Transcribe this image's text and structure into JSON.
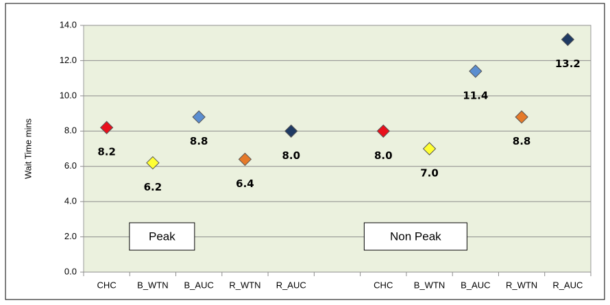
{
  "chart_data": {
    "type": "scatter",
    "y_label": "Wait Time  mins",
    "categories": [
      "CHC",
      "B_WTN",
      "B_AUC",
      "R_WTN",
      "R_AUC",
      null,
      "CHC",
      "B_WTN",
      "B_AUC",
      "R_WTN",
      "R_AUC"
    ],
    "values": [
      8.2,
      6.2,
      8.8,
      6.4,
      8.0,
      null,
      8.0,
      7.0,
      11.4,
      8.8,
      13.2
    ],
    "value_labels": [
      "8.2",
      "6.2",
      "8.8",
      "6.4",
      "8.0",
      null,
      "8.0",
      "7.0",
      "11.4",
      "8.8",
      "13.2"
    ],
    "colors": [
      "#e8101c",
      "#ffff33",
      "#5b8ed0",
      "#e57a2a",
      "#1f3a63",
      null,
      "#e8101c",
      "#ffff33",
      "#5b8ed0",
      "#e57a2a",
      "#1f3a63"
    ],
    "annotations": [
      "Peak",
      "Non Peak"
    ],
    "ylim": [
      0,
      14
    ],
    "yticks": [
      {
        "value": 0,
        "label": "0.0"
      },
      {
        "value": 2,
        "label": "2.0"
      },
      {
        "value": 4,
        "label": "4.0"
      },
      {
        "value": 6,
        "label": "6.0"
      },
      {
        "value": 8,
        "label": "8.0"
      },
      {
        "value": 10,
        "label": "10.0"
      },
      {
        "value": 12,
        "label": "12.0"
      },
      {
        "value": 14,
        "label": "14.0"
      }
    ],
    "grid": true
  }
}
